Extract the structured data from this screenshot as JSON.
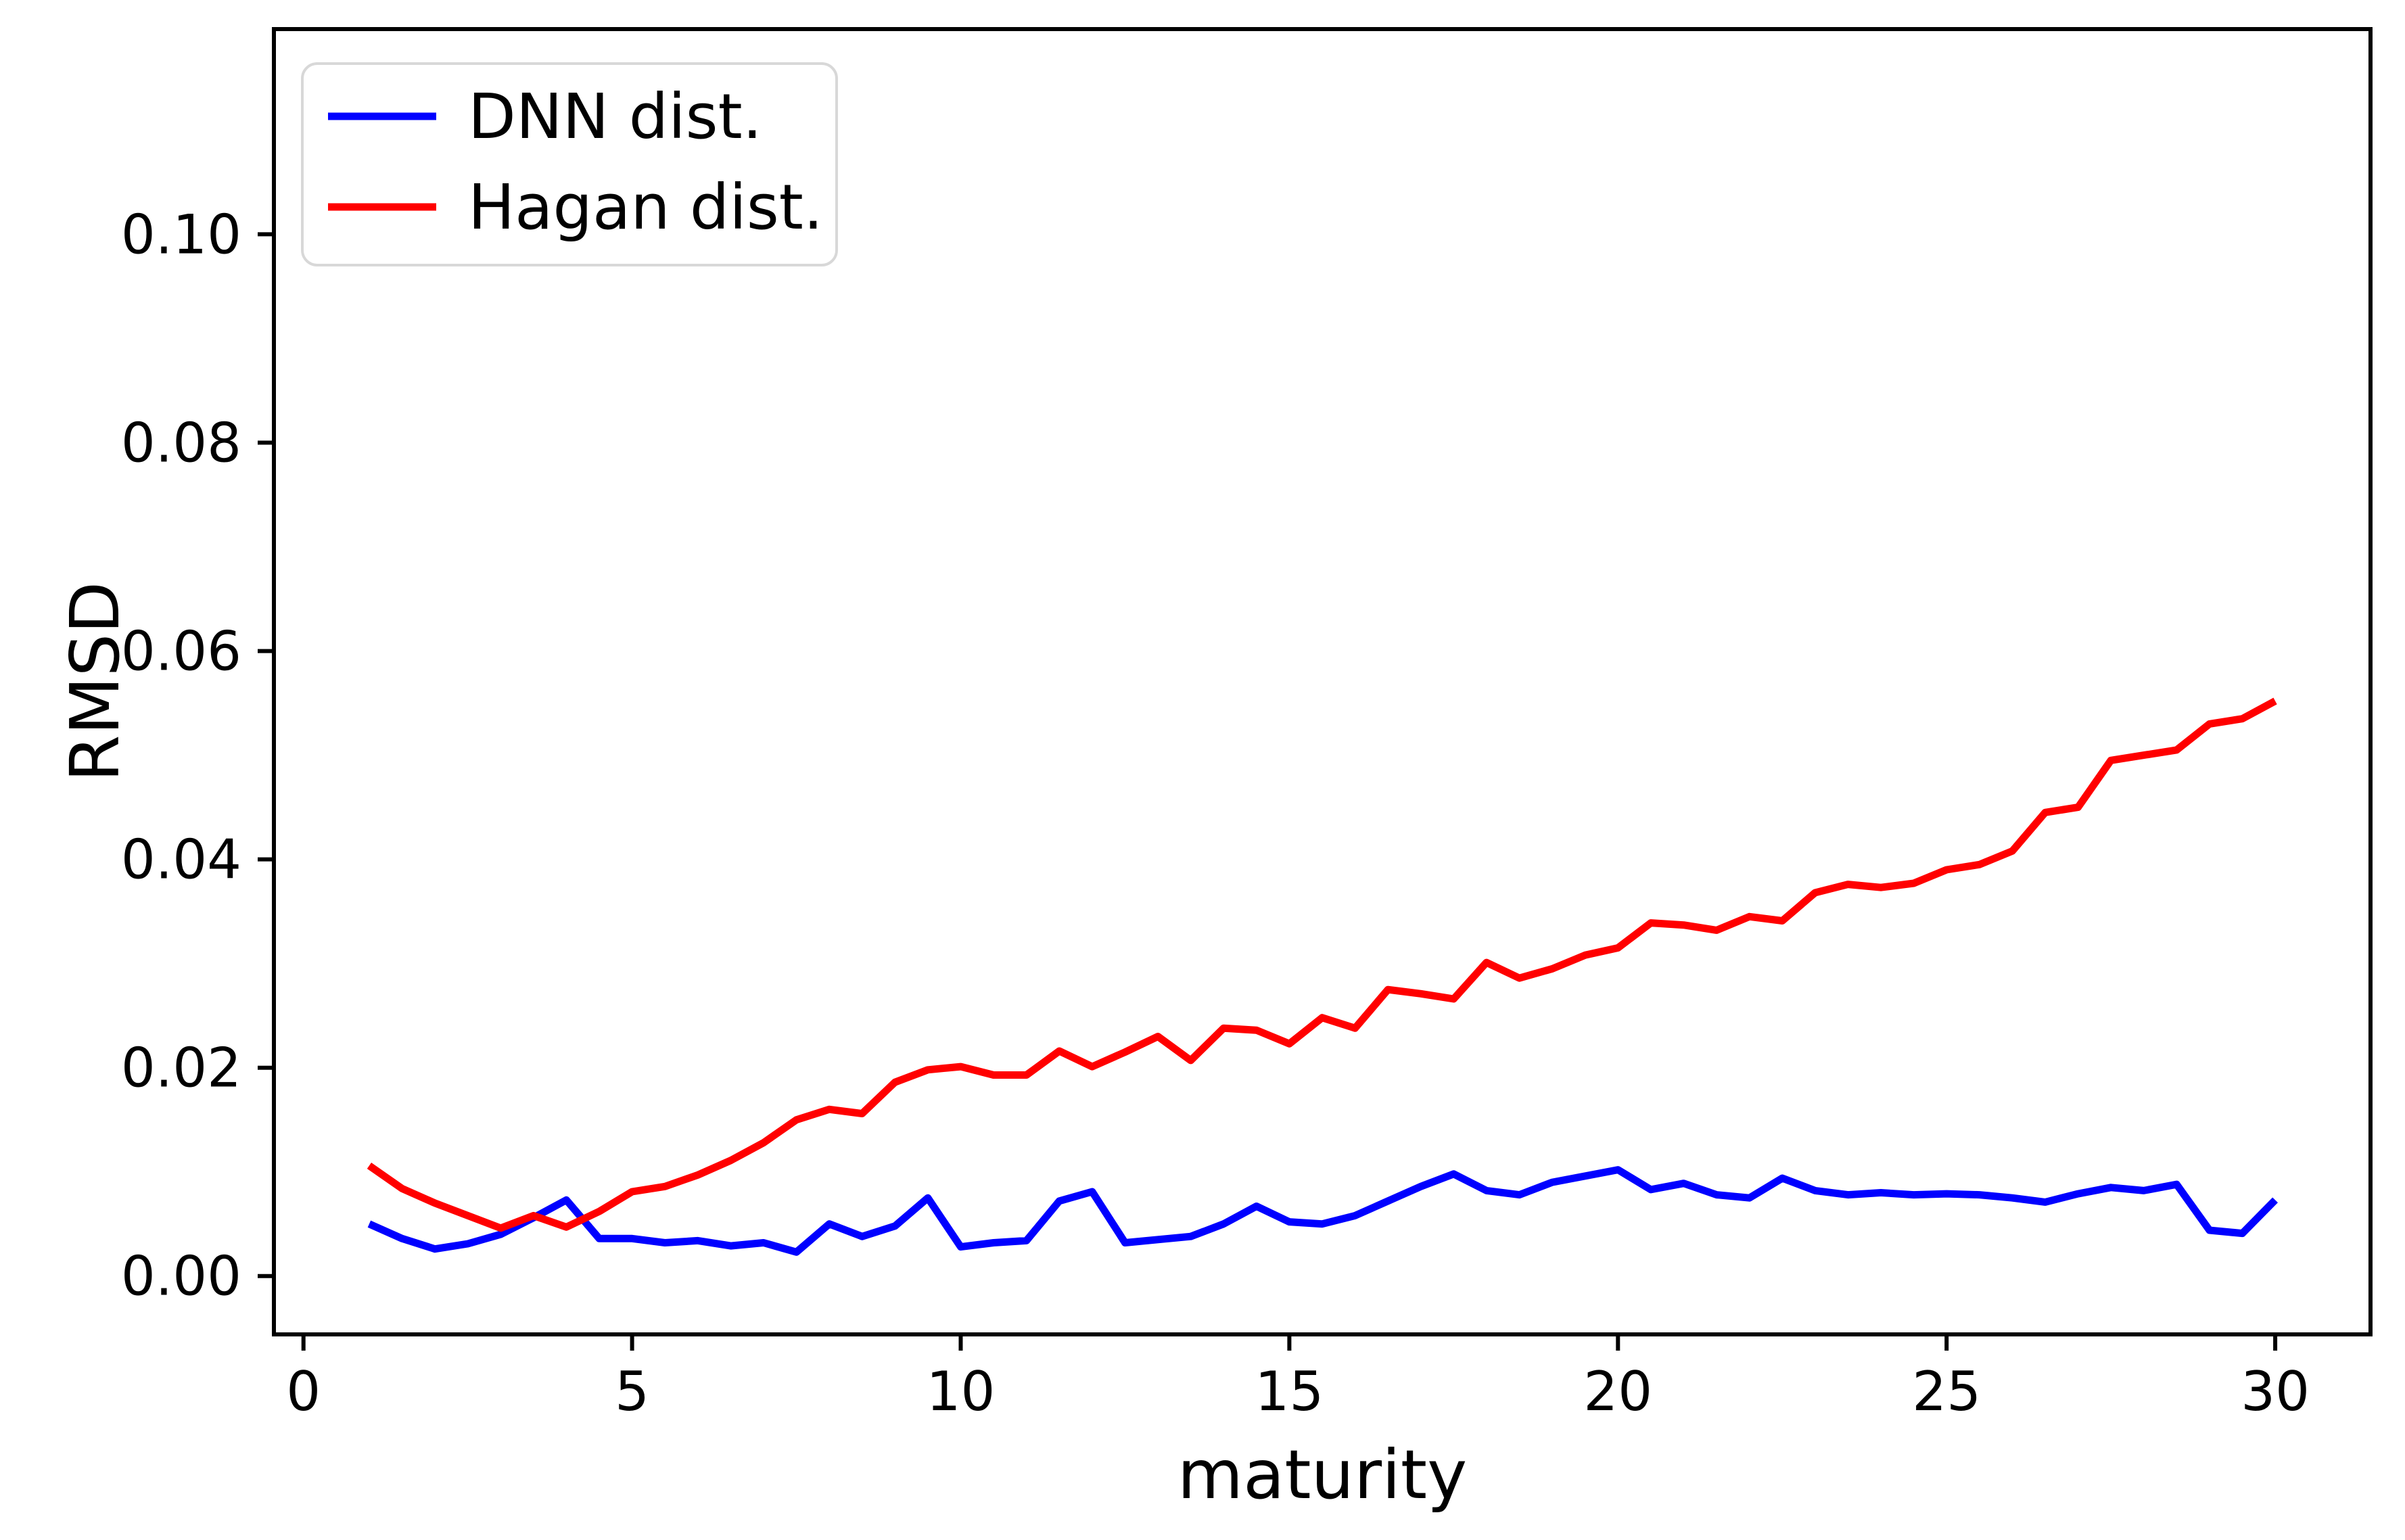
{
  "colors": {
    "dnn_line": "#0000ff",
    "hagan_line": "#ff0000",
    "axes": "#000000",
    "legend_border": "#d8d8d8",
    "background": "#ffffff"
  },
  "chart_data": {
    "type": "line",
    "title": "",
    "xlabel": "maturity",
    "ylabel": "RMSD",
    "xlim": [
      -0.45,
      31.45
    ],
    "ylim": [
      -0.0056,
      0.1197
    ],
    "grid": false,
    "legend_position": "upper-left",
    "x_ticks": [
      0,
      5,
      10,
      15,
      20,
      25,
      30
    ],
    "x_tick_labels": [
      "0",
      "5",
      "10",
      "15",
      "20",
      "25",
      "30"
    ],
    "y_ticks": [
      0.0,
      0.02,
      0.04,
      0.06,
      0.08,
      0.1
    ],
    "y_tick_labels": [
      "0.00",
      "0.02",
      "0.04",
      "0.06",
      "0.08",
      "0.10"
    ],
    "x": [
      1,
      1.5,
      2,
      2.5,
      3,
      3.5,
      4,
      4.5,
      5,
      5.5,
      6,
      6.5,
      7,
      7.5,
      8,
      8.5,
      9,
      9.5,
      10,
      10.5,
      11,
      11.5,
      12,
      12.5,
      13,
      13.5,
      14,
      14.5,
      15,
      15.5,
      16,
      16.5,
      17,
      17.5,
      18,
      18.5,
      19,
      19.5,
      20,
      20.5,
      21,
      21.5,
      22,
      22.5,
      23,
      23.5,
      24,
      24.5,
      25,
      25.5,
      26,
      26.5,
      27,
      27.5,
      28,
      28.5,
      29,
      29.5,
      30
    ],
    "series": [
      {
        "name": "DNN dist.",
        "color": "#0000ff",
        "values": [
          0.005,
          0.0036,
          0.0026,
          0.0031,
          0.004,
          0.0056,
          0.0073,
          0.0036,
          0.0036,
          0.0032,
          0.0034,
          0.0029,
          0.0032,
          0.0023,
          0.005,
          0.0038,
          0.0048,
          0.0075,
          0.0028,
          0.0032,
          0.0034,
          0.0072,
          0.0081,
          0.0032,
          0.0035,
          0.0038,
          0.005,
          0.0067,
          0.0052,
          0.005,
          0.0058,
          0.0072,
          0.0086,
          0.0098,
          0.0082,
          0.0078,
          0.009,
          0.0096,
          0.0102,
          0.0083,
          0.0089,
          0.0078,
          0.0075,
          0.0094,
          0.0082,
          0.0078,
          0.008,
          0.0078,
          0.0079,
          0.0078,
          0.0075,
          0.0071,
          0.0079,
          0.0085,
          0.0082,
          0.0088,
          0.0044,
          0.0041,
          0.0073
        ]
      },
      {
        "name": "Hagan dist.",
        "color": "#ff0000",
        "values": [
          0.0106,
          0.0084,
          0.007,
          0.0058,
          0.0046,
          0.0058,
          0.0047,
          0.0062,
          0.0081,
          0.0086,
          0.0097,
          0.0111,
          0.0128,
          0.015,
          0.016,
          0.0156,
          0.0186,
          0.0198,
          0.0201,
          0.0193,
          0.0193,
          0.0216,
          0.0201,
          0.0215,
          0.023,
          0.0207,
          0.0238,
          0.0236,
          0.0223,
          0.0248,
          0.0238,
          0.0275,
          0.0271,
          0.0266,
          0.0301,
          0.0286,
          0.0295,
          0.0308,
          0.0315,
          0.0339,
          0.0337,
          0.0332,
          0.0345,
          0.0341,
          0.0368,
          0.0376,
          0.0373,
          0.0377,
          0.039,
          0.0395,
          0.0408,
          0.0445,
          0.045,
          0.0495,
          0.05,
          0.0505,
          0.053,
          0.0535,
          0.0552
        ]
      }
    ]
  }
}
